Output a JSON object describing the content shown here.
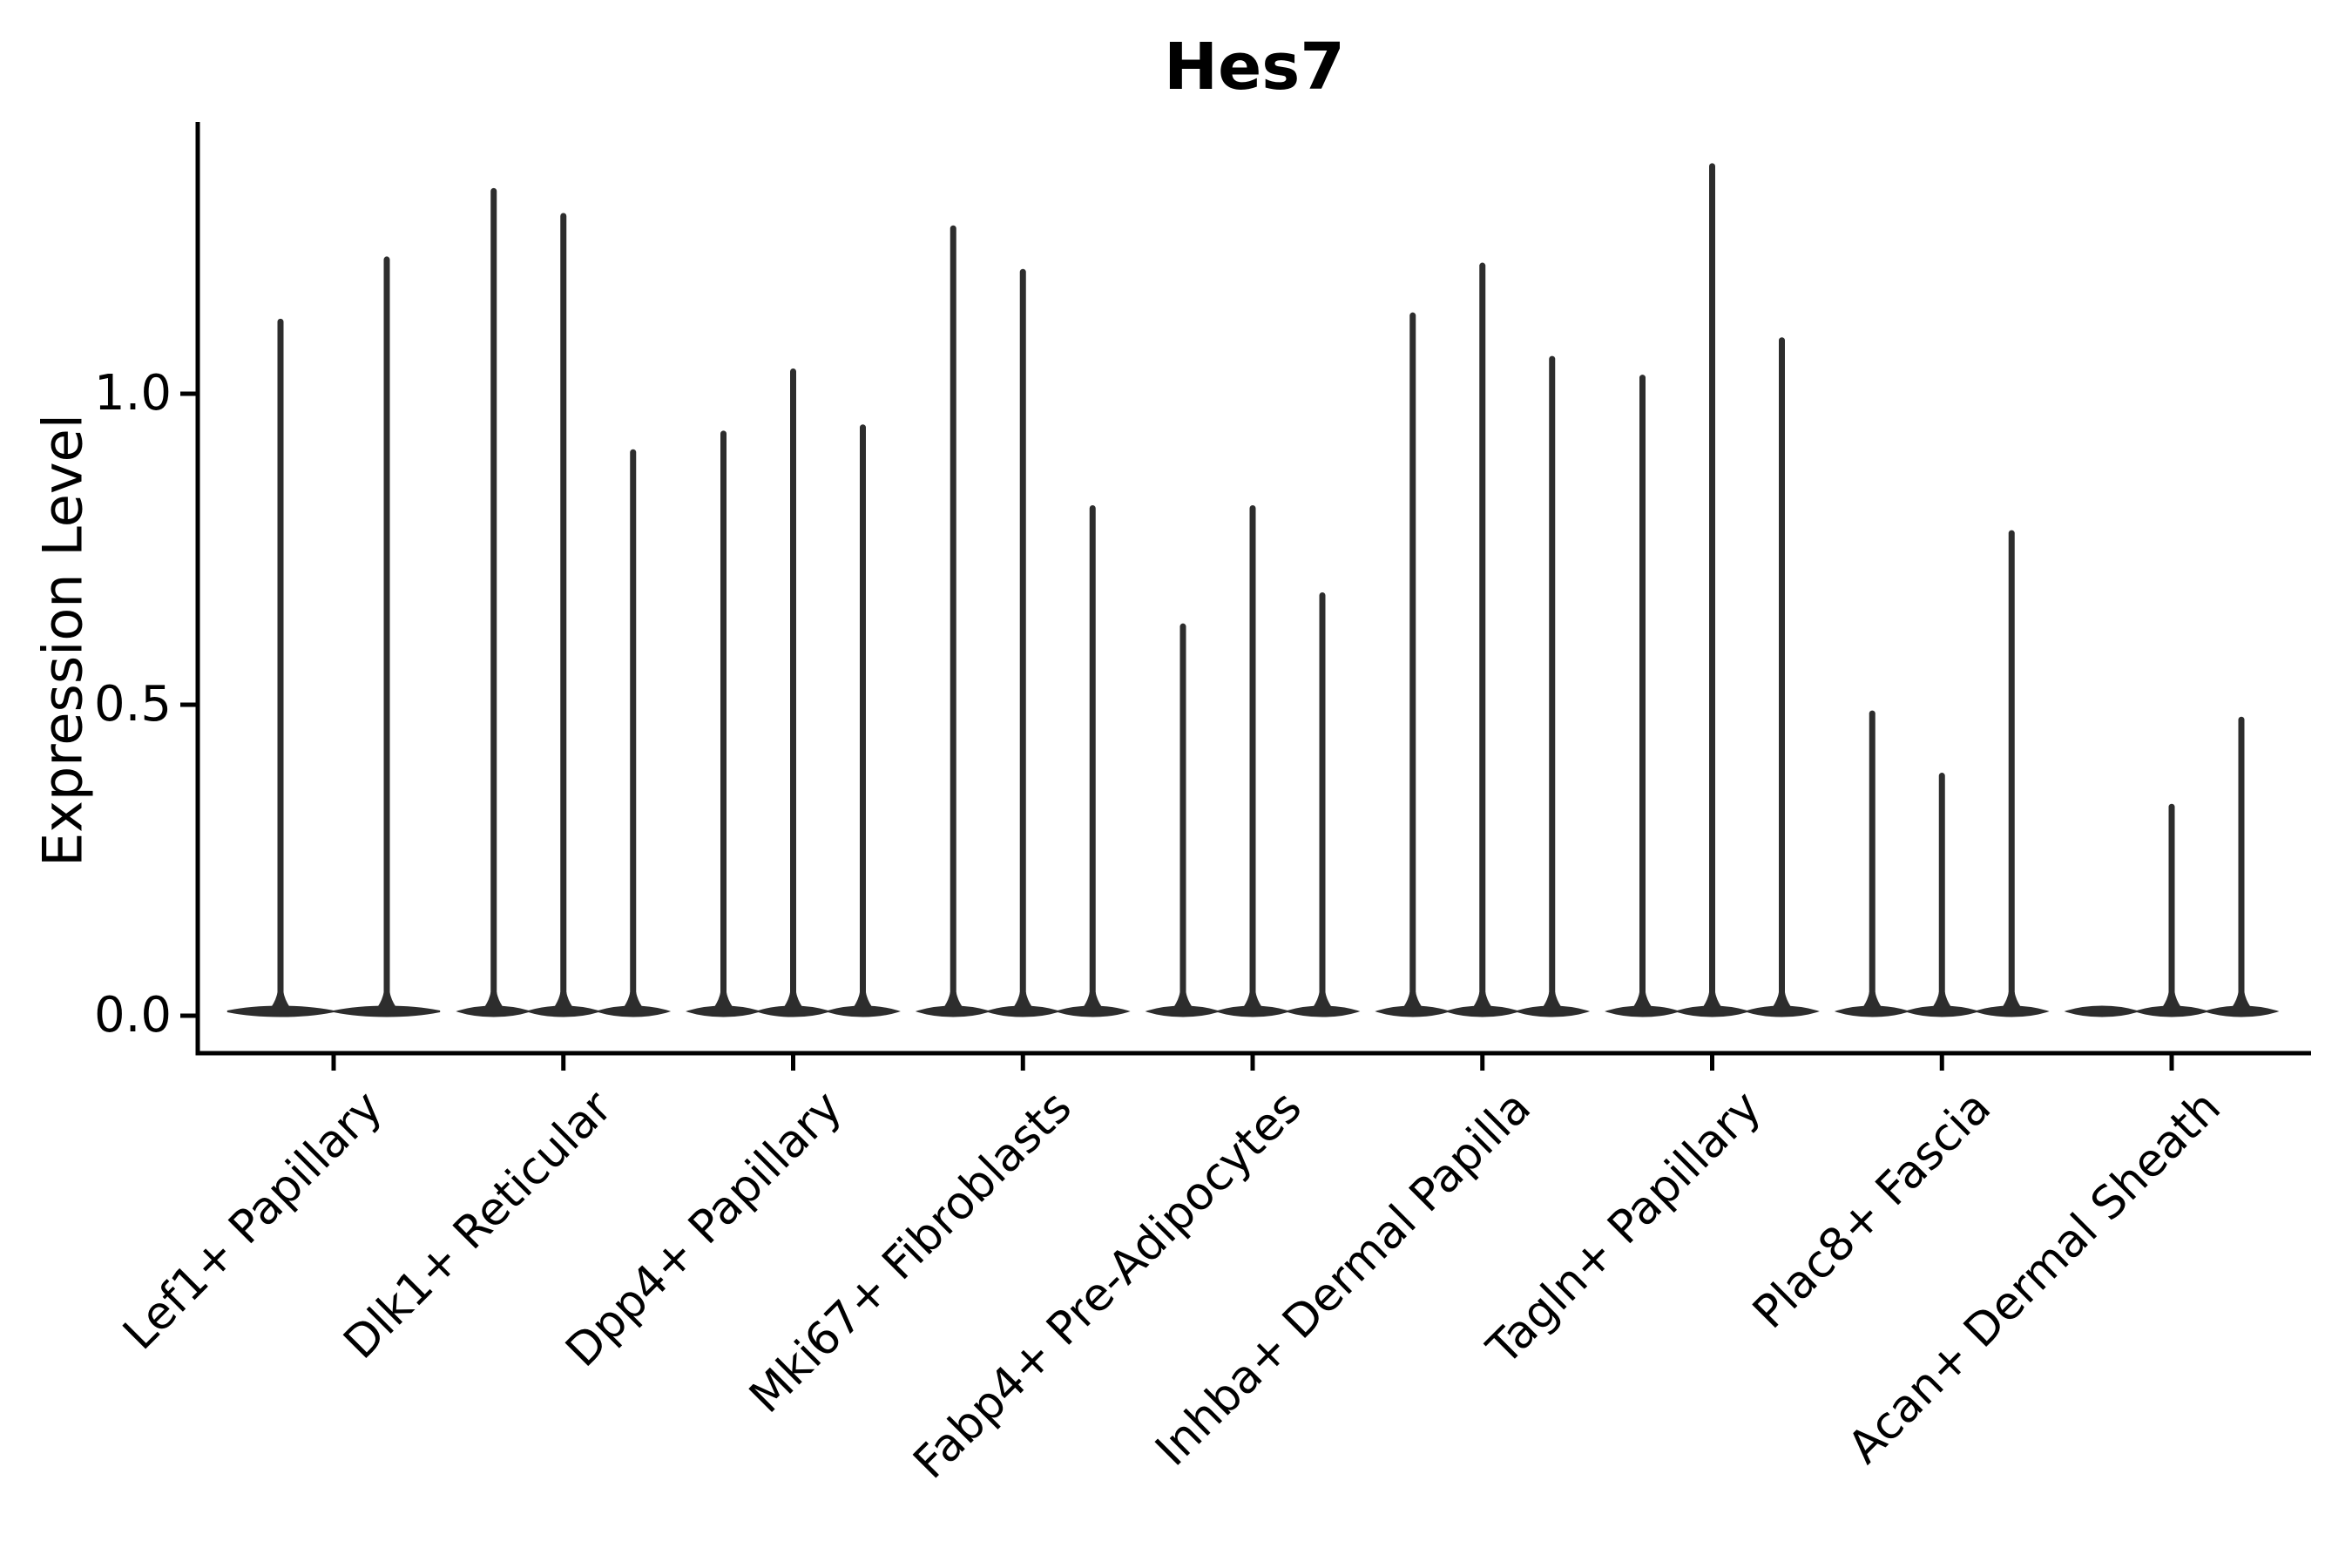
{
  "colors": {
    "violin": "#2d2d2d",
    "axis": "#000000",
    "text": "#000000",
    "background": "#ffffff"
  },
  "chart_data": {
    "type": "violin",
    "title": "Hes7",
    "xlabel": "",
    "ylabel": "Expression Level",
    "ylim": [
      -0.06,
      1.44
    ],
    "yticks": [
      {
        "label": "0.0",
        "value": 0.0
      },
      {
        "label": "0.5",
        "value": 0.5
      },
      {
        "label": "1.0",
        "value": 1.0
      }
    ],
    "grid": false,
    "legend": "none",
    "description": "Violin plot of Hes7 expression; each category shows 2-3 very thin violins collapsed at 0 with narrow spikes whose tips reach the listed maximum expression values (null = violin present but no spike).",
    "categories": [
      "Lef1+ Papillary",
      "Dlk1+ Reticular",
      "Dpp4+ Papillary",
      "Mki67+ Fibroblasts",
      "Fabp4+ Pre-Adipocytes",
      "Inhba+ Dermal Papilla",
      "Tagln+ Papillary",
      "Plac8+ Fascia",
      "Acan+ Dermal Sheath"
    ],
    "groups": [
      {
        "label": "Lef1+ Papillary",
        "offsets": [
          -61,
          61
        ],
        "violin_halfwidth": 61,
        "spike_values": [
          1.12,
          1.22
        ]
      },
      {
        "label": "Dlk1+ Reticular",
        "offsets": [
          -80,
          0,
          80
        ],
        "violin_halfwidth": 40,
        "spike_values": [
          1.33,
          1.29,
          0.91
        ]
      },
      {
        "label": "Dpp4+ Papillary",
        "offsets": [
          -80,
          0,
          80
        ],
        "violin_halfwidth": 40,
        "spike_values": [
          0.94,
          1.04,
          0.95
        ]
      },
      {
        "label": "Mki67+ Fibroblasts",
        "offsets": [
          -80,
          0,
          80
        ],
        "violin_halfwidth": 40,
        "spike_values": [
          1.27,
          1.2,
          0.82
        ]
      },
      {
        "label": "Fabp4+ Pre-Adipocytes",
        "offsets": [
          -80,
          0,
          80
        ],
        "violin_halfwidth": 40,
        "spike_values": [
          0.63,
          0.82,
          0.68
        ]
      },
      {
        "label": "Inhba+ Dermal Papilla",
        "offsets": [
          -80,
          0,
          80
        ],
        "violin_halfwidth": 40,
        "spike_values": [
          1.13,
          1.21,
          1.06
        ]
      },
      {
        "label": "Tagln+ Papillary",
        "offsets": [
          -80,
          0,
          80
        ],
        "violin_halfwidth": 40,
        "spike_values": [
          1.03,
          1.37,
          1.09
        ]
      },
      {
        "label": "Plac8+ Fascia",
        "offsets": [
          -80,
          0,
          80
        ],
        "violin_halfwidth": 40,
        "spike_values": [
          0.49,
          0.39,
          0.78
        ]
      },
      {
        "label": "Acan+ Dermal Sheath",
        "offsets": [
          -80,
          0,
          80
        ],
        "violin_halfwidth": 40,
        "spike_values": [
          null,
          0.34,
          0.48
        ]
      }
    ]
  }
}
